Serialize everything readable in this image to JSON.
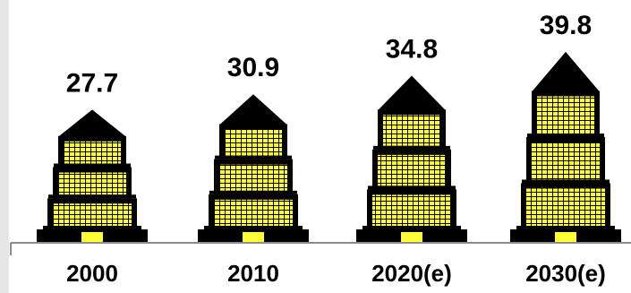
{
  "chart_data": {
    "type": "pictograph",
    "categories": [
      "2000",
      "2010",
      "2020(e)",
      "2030(e)"
    ],
    "values": [
      27.7,
      30.9,
      34.8,
      39.8
    ]
  }
}
